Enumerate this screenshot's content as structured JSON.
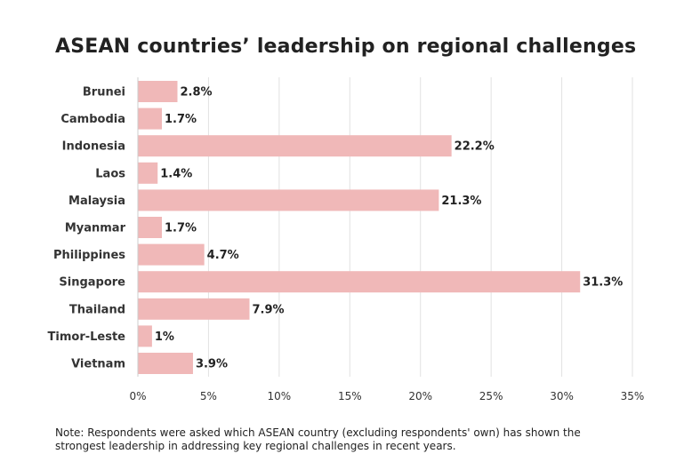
{
  "title": "ASEAN countries’ leadership on regional challenges",
  "note": "Note: Respondents were asked which ASEAN country (excluding respondents' own) has shown the strongest leadership in addressing key regional challenges in recent years.",
  "colors": {
    "bar": "#f0b8b8",
    "grid": "#e2e2e2",
    "text": "#222222"
  },
  "chart_data": {
    "type": "bar",
    "orientation": "horizontal",
    "title": "ASEAN countries’ leadership on regional challenges",
    "xlabel": "",
    "ylabel": "",
    "xlim": [
      0,
      35
    ],
    "categories": [
      "Brunei",
      "Cambodia",
      "Indonesia",
      "Laos",
      "Malaysia",
      "Myanmar",
      "Philippines",
      "Singapore",
      "Thailand",
      "Timor-Leste",
      "Vietnam"
    ],
    "values": [
      2.8,
      1.7,
      22.2,
      1.4,
      21.3,
      1.7,
      4.7,
      31.3,
      7.9,
      1,
      3.9
    ],
    "value_labels": [
      "2.8%",
      "1.7%",
      "22.2%",
      "1.4%",
      "21.3%",
      "1.7%",
      "4.7%",
      "31.3%",
      "7.9%",
      "1%",
      "3.9%"
    ],
    "ticks": [
      0,
      5,
      10,
      15,
      20,
      25,
      30,
      35
    ],
    "tick_labels": [
      "0%",
      "5%",
      "10%",
      "15%",
      "20%",
      "25%",
      "30%",
      "35%"
    ],
    "grid": true,
    "legend": "none"
  }
}
